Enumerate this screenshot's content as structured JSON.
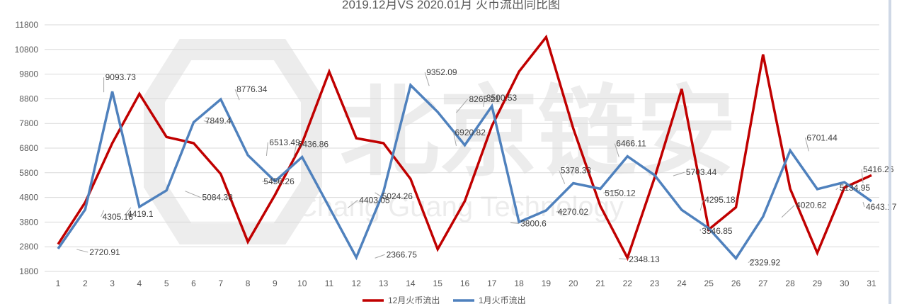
{
  "chart_data": {
    "type": "line",
    "title": "2019.12月VS 2020.01月 火币流出同比图",
    "watermark": "北京链安",
    "watermark_sub": "Chang Guang Technology",
    "xlabel": "",
    "ylabel": "",
    "x": [
      1,
      2,
      3,
      4,
      5,
      6,
      7,
      8,
      9,
      10,
      11,
      12,
      13,
      14,
      15,
      16,
      17,
      18,
      19,
      20,
      21,
      22,
      23,
      24,
      25,
      26,
      27,
      28,
      29,
      30,
      31
    ],
    "x_labels": [
      "1",
      "2",
      "3",
      "4",
      "5",
      "6",
      "7",
      "8",
      "9",
      "10",
      "11",
      "12",
      "13",
      "14",
      "15",
      "16",
      "17",
      "18",
      "19",
      "20",
      "21",
      "22",
      "23",
      "24",
      "25",
      "26",
      "27",
      "28",
      "29",
      "30",
      "31"
    ],
    "ylim": [
      1800,
      11800
    ],
    "yticks": [
      1800,
      2800,
      3800,
      4800,
      5800,
      6800,
      7800,
      8800,
      9800,
      10800,
      11800
    ],
    "ytick_labels": [
      "1800",
      "2800",
      "3800",
      "4800",
      "5800",
      "6800",
      "7800",
      "8800",
      "9800",
      "10800",
      "11800"
    ],
    "grid": true,
    "legend_position": "bottom",
    "series": [
      {
        "name": "12月火币流出",
        "color": "#C00000",
        "values": [
          2900,
          4600,
          7000,
          9000,
          7250,
          7000,
          5750,
          3000,
          4900,
          7000,
          9900,
          7200,
          7000,
          5550,
          2700,
          4650,
          7700,
          9900,
          11300,
          7600,
          4450,
          2348.13,
          5600,
          9200,
          3500,
          4400,
          10600,
          5150,
          2550,
          5200,
          5700
        ]
      },
      {
        "name": "1月火币流出",
        "color": "#4F81BD",
        "values": [
          2720.91,
          4305.16,
          9093.73,
          4419.1,
          5084.38,
          7849.4,
          8776.34,
          6513.49,
          5456.26,
          6436.86,
          4403.05,
          2366.75,
          5024.26,
          9352.09,
          8265.21,
          6920.82,
          8500.53,
          3800.6,
          4270.02,
          5378.33,
          5150.12,
          6466.11,
          5703.44,
          4295.18,
          3546.85,
          2329.92,
          4020.62,
          6701.44,
          5134.95,
          5416.26,
          4643.17
        ]
      }
    ],
    "data_labels": [
      {
        "x": 2,
        "value": 2720.91,
        "text": "2720.91"
      },
      {
        "x": 3,
        "value": 9093.73,
        "text": "9093.73"
      },
      {
        "x": 3,
        "value": 4305.16,
        "text": "4305.16"
      },
      {
        "x": 4,
        "value": 4419.1,
        "text": "4419.1"
      },
      {
        "x": 6,
        "value": 5084.38,
        "text": "5084.38"
      },
      {
        "x": 7,
        "value": 7849.4,
        "text": "7849.4"
      },
      {
        "x": 8,
        "value": 8776.34,
        "text": "8776.34"
      },
      {
        "x": 9,
        "value": 6513.49,
        "text": "6513.49"
      },
      {
        "x": 10,
        "value": 6436.86,
        "text": "6436.86"
      },
      {
        "x": 9,
        "value": 5456.26,
        "text": "5456.26"
      },
      {
        "x": 12,
        "value": 4403.05,
        "text": "4403.05"
      },
      {
        "x": 13,
        "value": 5024.26,
        "text": "5024.26"
      },
      {
        "x": 13,
        "value": 2366.75,
        "text": "2366.75"
      },
      {
        "x": 15,
        "value": 9352.09,
        "text": "9352.09"
      },
      {
        "x": 16,
        "value": 8265.21,
        "text": "8265.21"
      },
      {
        "x": 17,
        "value": 8500.53,
        "text": "8500.53"
      },
      {
        "x": 16,
        "value": 6920.82,
        "text": "6920.82"
      },
      {
        "x": 18,
        "value": 3800.6,
        "text": "3800.6"
      },
      {
        "x": 20,
        "value": 5378.33,
        "text": "5378.33"
      },
      {
        "x": 20,
        "value": 4270.02,
        "text": "4270.02"
      },
      {
        "x": 22,
        "value": 5150.12,
        "text": "5150.12"
      },
      {
        "x": 22,
        "value": 6466.11,
        "text": "6466.11"
      },
      {
        "x": 22,
        "value": 2348.13,
        "text": "2348.13"
      },
      {
        "x": 24,
        "value": 5703.44,
        "text": "5703.44"
      },
      {
        "x": 25,
        "value": 4295.18,
        "text": "4295.18"
      },
      {
        "x": 25,
        "value": 3546.85,
        "text": "3546.85"
      },
      {
        "x": 27,
        "value": 2329.92,
        "text": "2329.92"
      },
      {
        "x": 28,
        "value": 4020.62,
        "text": "4020.62"
      },
      {
        "x": 29,
        "value": 6701.44,
        "text": "6701.44"
      },
      {
        "x": 30,
        "value": 5134.95,
        "text": "5134.95"
      },
      {
        "x": 31,
        "value": 5416.26,
        "text": "5416.26"
      },
      {
        "x": 31,
        "value": 4643.17,
        "text": "4643.17"
      }
    ]
  }
}
